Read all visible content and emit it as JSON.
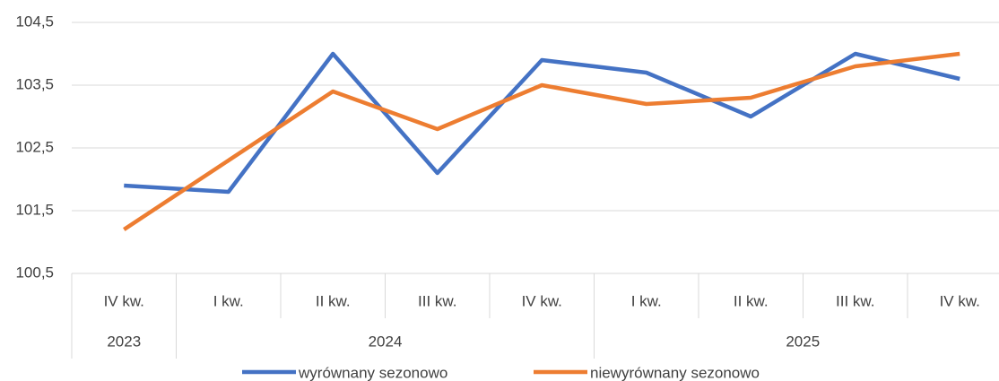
{
  "chart_data": {
    "type": "line",
    "groups": [
      {
        "name": "2023",
        "categories": [
          "IV kw."
        ]
      },
      {
        "name": "2024",
        "categories": [
          "I kw.",
          "II kw.",
          "III kw.",
          "IV kw."
        ]
      },
      {
        "name": "2025",
        "categories": [
          "I kw.",
          "II kw.",
          "III kw.",
          "IV kw."
        ]
      }
    ],
    "series": [
      {
        "name": "wyrównany sezonowo",
        "color": "#4472c4",
        "values": [
          101.9,
          101.8,
          104.0,
          102.1,
          103.9,
          103.7,
          103.0,
          104.0,
          103.6
        ]
      },
      {
        "name": "niewyrównany sezonowo",
        "color": "#ed7d31",
        "values": [
          101.2,
          102.3,
          103.4,
          102.8,
          103.5,
          103.2,
          103.3,
          103.8,
          104.0
        ]
      }
    ],
    "ylim": [
      100.5,
      104.5
    ],
    "yticks": [
      {
        "value": 100.5,
        "label": "100,5"
      },
      {
        "value": 101.5,
        "label": "101,5"
      },
      {
        "value": 102.5,
        "label": "102,5"
      },
      {
        "value": 103.5,
        "label": "103,5"
      },
      {
        "value": 104.5,
        "label": "104,5"
      }
    ],
    "grid": true,
    "legend": "bottom"
  }
}
